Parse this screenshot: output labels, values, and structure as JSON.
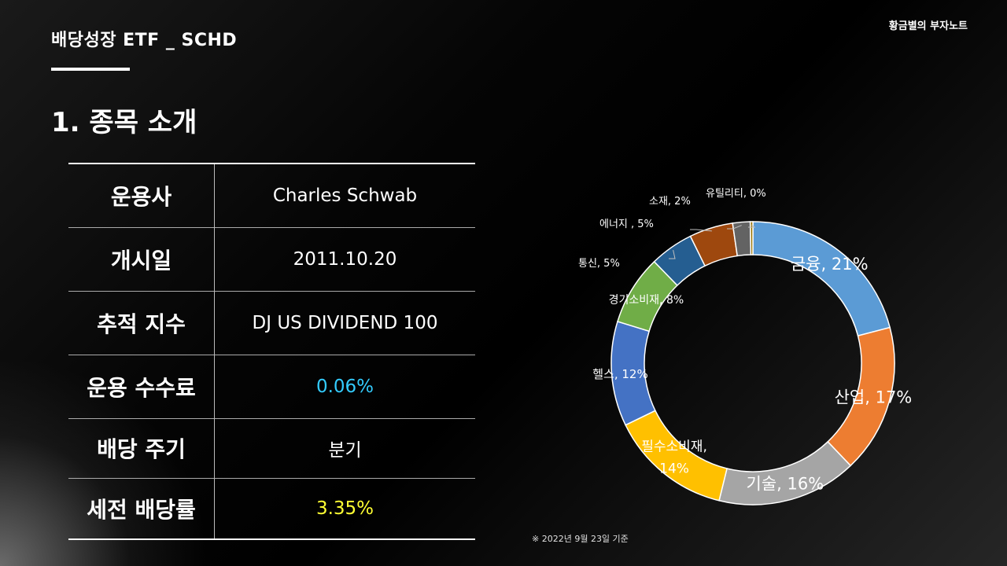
{
  "header": {
    "title": "배당성장 ETF _ SCHD",
    "brand": "황금별의 부자노트"
  },
  "section_title": "1. 종목 소개",
  "table": {
    "rows": [
      {
        "label": "운용사",
        "value": "Charles Schwab",
        "color": "#ffffff"
      },
      {
        "label": "개시일",
        "value": "2011.10.20",
        "color": "#ffffff"
      },
      {
        "label": "추적 지수",
        "value": "DJ US DIVIDEND 100",
        "color": "#ffffff"
      },
      {
        "label": "운용 수수료",
        "value": "0.06%",
        "color": "#33ccff"
      },
      {
        "label": "배당 주기",
        "value": "분기",
        "color": "#ffffff"
      },
      {
        "label": "세전 배당률",
        "value": "3.35%",
        "color": "#ffff33"
      }
    ]
  },
  "chart_data": {
    "type": "donut",
    "slices": [
      {
        "name": "금융",
        "value": 21,
        "label": "금융, 21%",
        "color": "#5b9bd5"
      },
      {
        "name": "산업",
        "value": 17,
        "label": "산업, 17%",
        "color": "#ed7d31"
      },
      {
        "name": "기술",
        "value": 16,
        "label": "기술, 16%",
        "color": "#a5a5a5"
      },
      {
        "name": "필수소비재",
        "value": 14,
        "label": "필수소비재, 14%",
        "color": "#ffc000"
      },
      {
        "name": "헬스",
        "value": 12,
        "label": "헬스, 12%",
        "color": "#4472c4"
      },
      {
        "name": "경기소비재",
        "value": 8,
        "label": "경기소비재, 8%",
        "color": "#70ad47"
      },
      {
        "name": "통신",
        "value": 5,
        "label": "통신, 5%",
        "color": "#255e91"
      },
      {
        "name": "에너지",
        "value": 5,
        "label": "에너지 , 5%",
        "color": "#9e480e"
      },
      {
        "name": "소재",
        "value": 2,
        "label": "소재, 2%",
        "color": "#636363"
      },
      {
        "name": "유틸리티",
        "value": 0.3,
        "label": "유틸리티, 0%",
        "color": "#997300"
      }
    ]
  },
  "footnote": "※ 2022년 9월 23일 기준"
}
